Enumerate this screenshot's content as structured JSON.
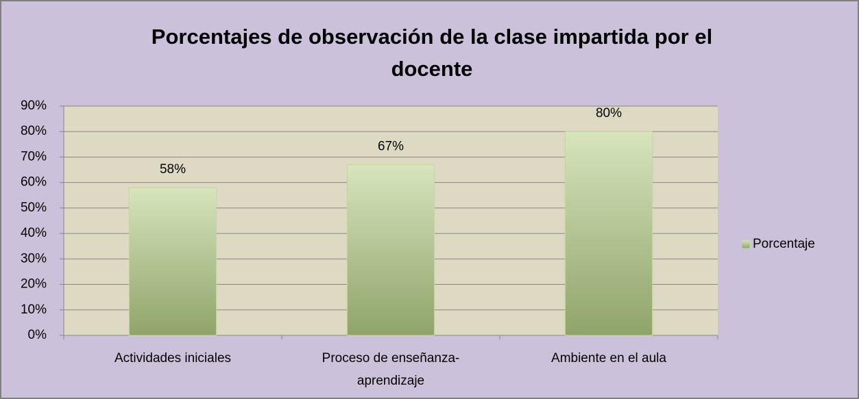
{
  "chart_data": {
    "type": "bar",
    "title": "Porcentajes de observación de la clase impartida por el docente",
    "categories": [
      "Actividades iniciales",
      "Proceso de enseñanza-aprendizaje",
      "Ambiente en el aula"
    ],
    "series": [
      {
        "name": "Porcentaje",
        "color": "#c3d69b",
        "values": [
          58,
          67,
          80
        ],
        "value_labels": [
          "58%",
          "67%",
          "80%"
        ]
      }
    ],
    "ylim": [
      0,
      90
    ],
    "yticks": [
      {
        "value": 0,
        "label": "0%"
      },
      {
        "value": 10,
        "label": "10%"
      },
      {
        "value": 20,
        "label": "20%"
      },
      {
        "value": 30,
        "label": "30%"
      },
      {
        "value": 40,
        "label": "40%"
      },
      {
        "value": 50,
        "label": "50%"
      },
      {
        "value": 60,
        "label": "60%"
      },
      {
        "value": 70,
        "label": "70%"
      },
      {
        "value": 80,
        "label": "80%"
      },
      {
        "value": 90,
        "label": "90%"
      }
    ],
    "grid": true,
    "legend": "right"
  }
}
